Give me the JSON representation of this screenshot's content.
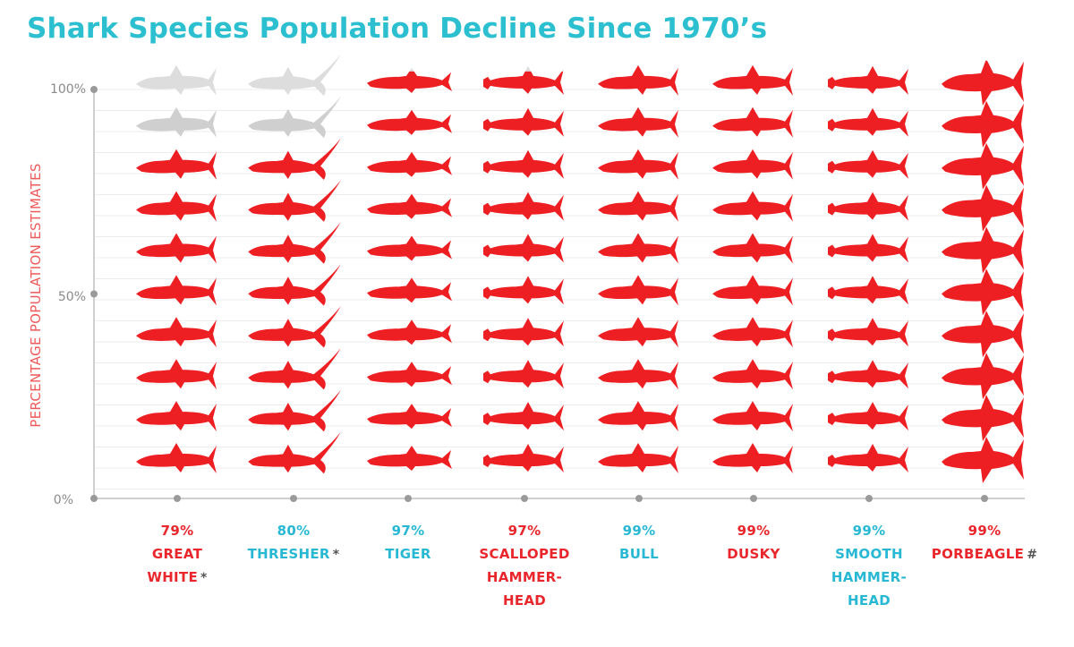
{
  "chart_data": {
    "type": "pictograph",
    "title": "Shark Species Population Decline Since 1970’s",
    "ylabel": "PERCENTAGE POPULATION ESTIMATES",
    "y_ticks": [
      "100%",
      "50%",
      "0%"
    ],
    "ylim": [
      0,
      100
    ],
    "icons_per_column": 10,
    "highlight_color": "#ee1f23",
    "label_colors": {
      "red": "#e8262b",
      "cyan": "#29b8d4"
    },
    "species": [
      {
        "percent": 79,
        "percent_label": "79%",
        "name_lines": [
          "GREAT",
          "WHITE"
        ],
        "note": "*",
        "label_color": "red",
        "shape": "shark"
      },
      {
        "percent": 80,
        "percent_label": "80%",
        "name_lines": [
          "THRESHER"
        ],
        "note": "*",
        "label_color": "cyan",
        "shape": "thresher"
      },
      {
        "percent": 97,
        "percent_label": "97%",
        "name_lines": [
          "TIGER"
        ],
        "note": "",
        "label_color": "cyan",
        "shape": "tiger"
      },
      {
        "percent": 97,
        "percent_label": "97%",
        "name_lines": [
          "SCALLOPED",
          "HAMMER-",
          "HEAD"
        ],
        "note": "",
        "label_color": "red",
        "shape": "hammer"
      },
      {
        "percent": 99,
        "percent_label": "99%",
        "name_lines": [
          "BULL"
        ],
        "note": "",
        "label_color": "cyan",
        "shape": "shark"
      },
      {
        "percent": 99,
        "percent_label": "99%",
        "name_lines": [
          "DUSKY"
        ],
        "note": "",
        "label_color": "red",
        "shape": "shark"
      },
      {
        "percent": 99,
        "percent_label": "99%",
        "name_lines": [
          "SMOOTH",
          "HAMMER-",
          "HEAD"
        ],
        "note": "",
        "label_color": "cyan",
        "shape": "hammer"
      },
      {
        "percent": 99,
        "percent_label": "99%",
        "name_lines": [
          "PORBEAGLE"
        ],
        "note": "#",
        "label_color": "red",
        "shape": "porbeagle"
      }
    ]
  }
}
